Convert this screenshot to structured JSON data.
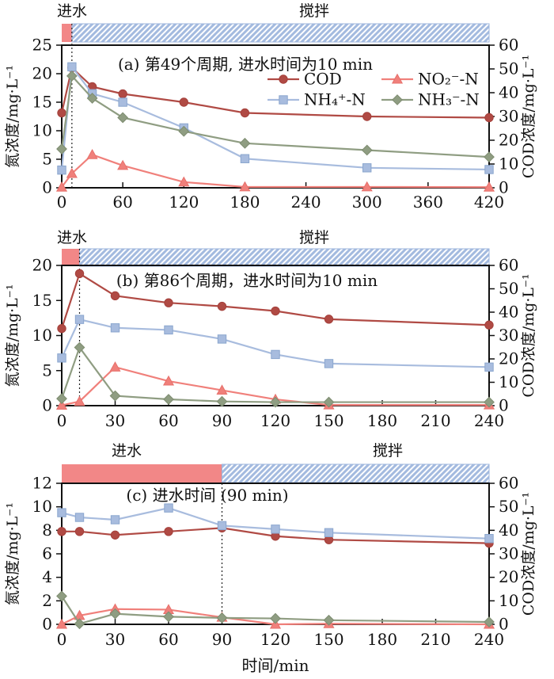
{
  "figure": {
    "phase_labels": {
      "feed": "进水",
      "stir": "搅拌"
    },
    "colors": {
      "feed_bar": "#f28787",
      "hatch_stripe": "#a3badf",
      "hatch_edge": "#9db5dc",
      "axis": "#111111",
      "dashed_line": "#222222"
    },
    "legend_order": [
      "cod",
      "no2",
      "nh4",
      "nh3"
    ]
  },
  "chart_data": [
    {
      "id": "a",
      "type": "line",
      "title": "(a) 第49个周期, 进水时间为10 min",
      "xlim": [
        0,
        420
      ],
      "x_ticks": [
        0,
        60,
        120,
        180,
        240,
        300,
        360,
        420
      ],
      "y_left": {
        "label": "氮浓度/mg·L⁻¹",
        "lim": [
          0,
          25
        ],
        "ticks": [
          0,
          5,
          10,
          15,
          20,
          25
        ]
      },
      "y_right": {
        "label": "COD浓度/mg·L⁻¹",
        "lim": [
          0,
          60
        ],
        "ticks": [
          0,
          10,
          20,
          30,
          40,
          50,
          60
        ]
      },
      "phases": {
        "feed": [
          0,
          10
        ],
        "stir": [
          10,
          420
        ]
      },
      "dashed_x": 10,
      "x": [
        0,
        10,
        30,
        60,
        120,
        180,
        300,
        420
      ],
      "series": [
        {
          "key": "cod",
          "name": "COD",
          "axis": "right",
          "marker": "circle",
          "color": "#b04a44",
          "edge": "#a4403b",
          "values": [
            31.5,
            50.5,
            42.5,
            39.5,
            36,
            31.5,
            30,
            29.5
          ]
        },
        {
          "key": "nh4",
          "name": "NH₄⁺-N",
          "axis": "left",
          "marker": "square",
          "color": "#a8bcde",
          "edge": "#8aa6ce",
          "values": [
            3.1,
            21.2,
            16.5,
            15,
            10.5,
            5.1,
            3.5,
            3.2
          ]
        },
        {
          "key": "no2",
          "name": "NO₂⁻-N",
          "axis": "left",
          "marker": "triangle",
          "color": "#f0807b",
          "edge": "#e7706b",
          "values": [
            0.1,
            2.5,
            5.8,
            3.9,
            1,
            0.15,
            0.15,
            0.1
          ]
        },
        {
          "key": "nh3",
          "name": "NH₃⁻-N",
          "axis": "left",
          "marker": "diamond",
          "color": "#8f9d82",
          "edge": "#7d8c70",
          "values": [
            6.8,
            19.6,
            15.7,
            12.3,
            9.9,
            7.8,
            6.6,
            5.4
          ]
        }
      ],
      "show_legend": true
    },
    {
      "id": "b",
      "type": "line",
      "title": "(b) 第86个周期，进水时间为10 min",
      "xlim": [
        0,
        240
      ],
      "x_ticks": [
        0,
        30,
        60,
        90,
        120,
        150,
        180,
        210,
        240
      ],
      "y_left": {
        "label": "氮浓度/mg·L⁻¹",
        "lim": [
          0,
          20
        ],
        "ticks": [
          0,
          5,
          10,
          15,
          20
        ]
      },
      "y_right": {
        "label": "COD浓度/mg·L⁻¹",
        "lim": [
          0,
          60
        ],
        "ticks": [
          0,
          10,
          20,
          30,
          40,
          50,
          60
        ]
      },
      "phases": {
        "feed": [
          0,
          10
        ],
        "stir": [
          10,
          240
        ]
      },
      "dashed_x": 10,
      "x": [
        0,
        10,
        30,
        60,
        90,
        120,
        150,
        240
      ],
      "series": [
        {
          "key": "cod",
          "name": "COD",
          "axis": "right",
          "marker": "circle",
          "color": "#b04a44",
          "edge": "#a4403b",
          "values": [
            33,
            56.5,
            47,
            44,
            42.5,
            40.5,
            37,
            34.5
          ]
        },
        {
          "key": "nh4",
          "name": "NH₄⁺-N",
          "axis": "left",
          "marker": "square",
          "color": "#a8bcde",
          "edge": "#8aa6ce",
          "values": [
            6.8,
            12.3,
            11.1,
            10.8,
            9.5,
            7.3,
            6,
            5.5
          ]
        },
        {
          "key": "no2",
          "name": "NO₂⁻-N",
          "axis": "left",
          "marker": "triangle",
          "color": "#f0807b",
          "edge": "#e7706b",
          "values": [
            0.05,
            0.6,
            5.5,
            3.5,
            2.2,
            0.9,
            0.1,
            0.1
          ]
        },
        {
          "key": "nh3",
          "name": "NH₃⁻-N",
          "axis": "left",
          "marker": "diamond",
          "color": "#8f9d82",
          "edge": "#7d8c70",
          "values": [
            1,
            8.3,
            1.4,
            0.9,
            0.6,
            0.5,
            0.5,
            0.5
          ]
        }
      ],
      "show_legend": false
    },
    {
      "id": "c",
      "type": "line",
      "title": "(c) 进水时间 (90 min)",
      "x_axis_title": "时间/min",
      "xlim": [
        0,
        240
      ],
      "x_ticks": [
        0,
        30,
        60,
        90,
        120,
        150,
        180,
        210,
        240
      ],
      "y_left": {
        "label": "氮浓度/mg·L⁻¹",
        "lim": [
          0,
          12
        ],
        "ticks": [
          0,
          2,
          4,
          6,
          8,
          10,
          12
        ]
      },
      "y_right": {
        "label": "COD浓度/mg·L⁻¹",
        "lim": [
          0,
          60
        ],
        "ticks": [
          0,
          10,
          20,
          30,
          40,
          50,
          60
        ]
      },
      "phases": {
        "feed": [
          0,
          90
        ],
        "stir": [
          90,
          240
        ]
      },
      "dashed_x": 90,
      "x": [
        0,
        10,
        30,
        60,
        90,
        120,
        150,
        240
      ],
      "series": [
        {
          "key": "cod",
          "name": "COD",
          "axis": "right",
          "marker": "circle",
          "color": "#b04a44",
          "edge": "#a4403b",
          "values": [
            39.5,
            39.5,
            38,
            39.5,
            41,
            37.5,
            36,
            34.5
          ]
        },
        {
          "key": "nh4",
          "name": "NH₄⁺-N",
          "axis": "left",
          "marker": "square",
          "color": "#a8bcde",
          "edge": "#8aa6ce",
          "values": [
            9.5,
            9.1,
            8.9,
            9.9,
            8.4,
            8.1,
            7.8,
            7.3
          ]
        },
        {
          "key": "no2",
          "name": "NO₂⁻-N",
          "axis": "left",
          "marker": "triangle",
          "color": "#f0807b",
          "edge": "#e7706b",
          "values": [
            0,
            0.75,
            1.3,
            1.25,
            0.6,
            0,
            0.05,
            0
          ]
        },
        {
          "key": "nh3",
          "name": "NH₃⁻-N",
          "axis": "left",
          "marker": "diamond",
          "color": "#8f9d82",
          "edge": "#7d8c70",
          "values": [
            2.4,
            0.05,
            0.9,
            0.65,
            0.55,
            0.5,
            0.35,
            0.2
          ]
        }
      ],
      "show_legend": false
    }
  ]
}
